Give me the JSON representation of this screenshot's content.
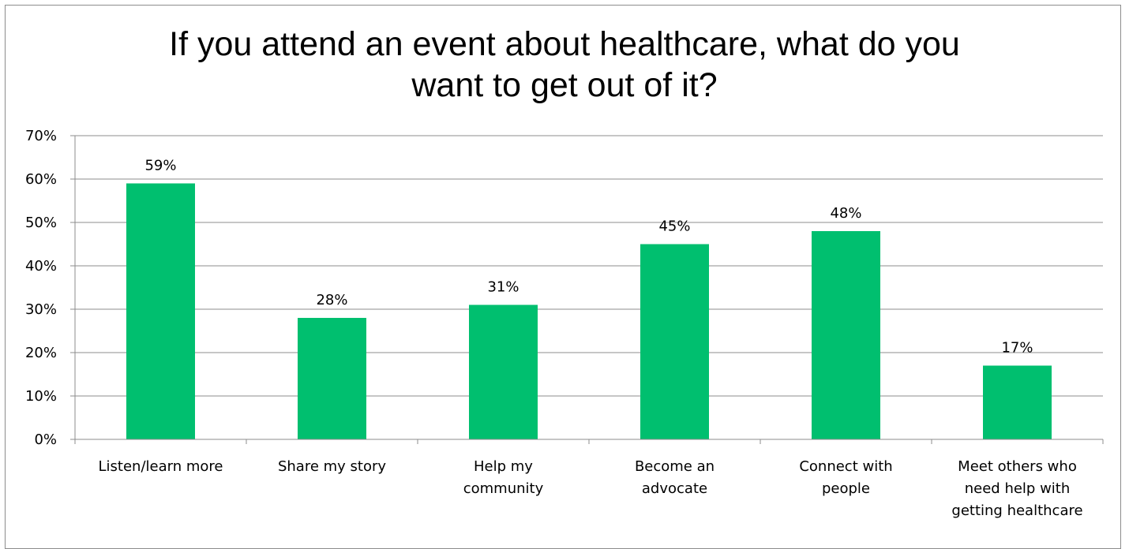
{
  "chart_data": {
    "type": "bar",
    "title_lines": [
      "If you attend an event about healthcare, what do you",
      "want to get out of it?"
    ],
    "categories": [
      [
        "Listen/learn more"
      ],
      [
        "Share my story"
      ],
      [
        "Help my",
        "community"
      ],
      [
        "Become an",
        "advocate"
      ],
      [
        "Connect with",
        "people"
      ],
      [
        "Meet others who",
        "need help with",
        "getting healthcare"
      ]
    ],
    "values": [
      59,
      28,
      31,
      45,
      48,
      17
    ],
    "data_labels": [
      "59%",
      "28%",
      "31%",
      "45%",
      "48%",
      "17%"
    ],
    "y_ticks": [
      "0%",
      "10%",
      "20%",
      "30%",
      "40%",
      "50%",
      "60%",
      "70%"
    ],
    "ylim": [
      0,
      70
    ],
    "grid": true,
    "legend": "none",
    "bar_color": "#00bf6f",
    "grid_color": "#8c8c8c"
  }
}
